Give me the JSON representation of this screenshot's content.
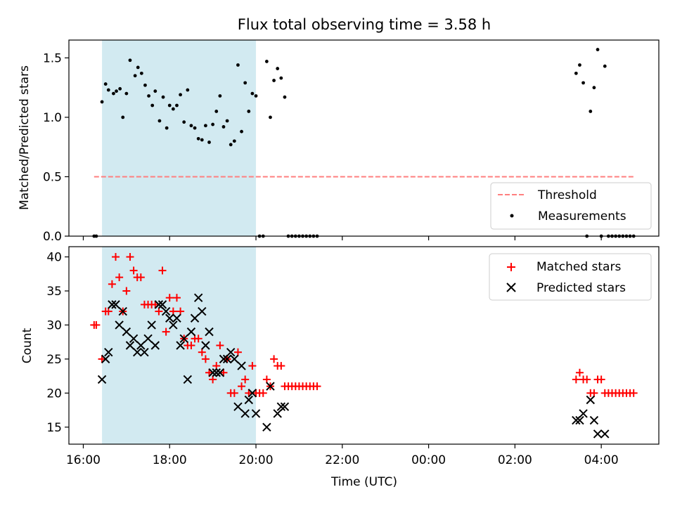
{
  "chart_data": [
    {
      "type": "scatter",
      "title": "Flux total observing time = 3.58 h",
      "xlabel": "",
      "ylabel": "Matched/Predicted stars",
      "ylim": [
        0,
        1.65
      ],
      "xlim": [
        "15:40",
        "05:20"
      ],
      "yticks": [
        "0.0",
        "0.5",
        "1.0",
        "1.5"
      ],
      "ytick_values": [
        0,
        0.5,
        1.0,
        1.5
      ],
      "shaded_span": {
        "start": "16:26",
        "end": "20:00",
        "color": "#add8e6"
      },
      "grid": false,
      "legend_position": "lower-right",
      "legend": {
        "threshold_label": "Threshold",
        "measurements_label": "Measurements"
      },
      "threshold": {
        "value": 0.5,
        "x_start": "16:15",
        "x_end": "04:45",
        "color": "#ff7f7f"
      },
      "measurements_color": "#000000",
      "measurements": [
        {
          "t": "16:15",
          "v": 0
        },
        {
          "t": "16:18",
          "v": 0
        },
        {
          "t": "16:26",
          "v": 1.13
        },
        {
          "t": "16:31",
          "v": 1.28
        },
        {
          "t": "16:35",
          "v": 1.23
        },
        {
          "t": "16:42",
          "v": 1.2
        },
        {
          "t": "16:46",
          "v": 1.22
        },
        {
          "t": "16:51",
          "v": 1.24
        },
        {
          "t": "16:55",
          "v": 1.0
        },
        {
          "t": "17:00",
          "v": 1.2
        },
        {
          "t": "17:05",
          "v": 1.48
        },
        {
          "t": "17:12",
          "v": 1.35
        },
        {
          "t": "17:16",
          "v": 1.42
        },
        {
          "t": "17:21",
          "v": 1.37
        },
        {
          "t": "17:26",
          "v": 1.27
        },
        {
          "t": "17:31",
          "v": 1.18
        },
        {
          "t": "17:36",
          "v": 1.1
        },
        {
          "t": "17:40",
          "v": 1.22
        },
        {
          "t": "17:46",
          "v": 0.97
        },
        {
          "t": "17:51",
          "v": 1.17
        },
        {
          "t": "17:56",
          "v": 0.91
        },
        {
          "t": "18:00",
          "v": 1.1
        },
        {
          "t": "18:05",
          "v": 1.07
        },
        {
          "t": "18:10",
          "v": 1.1
        },
        {
          "t": "18:15",
          "v": 1.19
        },
        {
          "t": "18:20",
          "v": 0.96
        },
        {
          "t": "18:25",
          "v": 1.23
        },
        {
          "t": "18:30",
          "v": 0.93
        },
        {
          "t": "18:35",
          "v": 0.91
        },
        {
          "t": "18:40",
          "v": 0.82
        },
        {
          "t": "18:45",
          "v": 0.81
        },
        {
          "t": "18:50",
          "v": 0.93
        },
        {
          "t": "18:55",
          "v": 0.79
        },
        {
          "t": "19:00",
          "v": 0.94
        },
        {
          "t": "19:05",
          "v": 1.05
        },
        {
          "t": "19:10",
          "v": 1.18
        },
        {
          "t": "19:15",
          "v": 0.92
        },
        {
          "t": "19:20",
          "v": 0.97
        },
        {
          "t": "19:25",
          "v": 0.77
        },
        {
          "t": "19:30",
          "v": 0.8
        },
        {
          "t": "19:35",
          "v": 1.44
        },
        {
          "t": "19:40",
          "v": 0.88
        },
        {
          "t": "19:45",
          "v": 1.29
        },
        {
          "t": "19:50",
          "v": 1.05
        },
        {
          "t": "19:55",
          "v": 1.2
        },
        {
          "t": "20:00",
          "v": 1.18
        },
        {
          "t": "20:05",
          "v": 0
        },
        {
          "t": "20:10",
          "v": 0
        },
        {
          "t": "20:15",
          "v": 1.47
        },
        {
          "t": "20:20",
          "v": 1.0
        },
        {
          "t": "20:25",
          "v": 1.31
        },
        {
          "t": "20:30",
          "v": 1.41
        },
        {
          "t": "20:35",
          "v": 1.33
        },
        {
          "t": "20:40",
          "v": 1.17
        },
        {
          "t": "20:45",
          "v": 0
        },
        {
          "t": "20:50",
          "v": 0
        },
        {
          "t": "20:55",
          "v": 0
        },
        {
          "t": "21:00",
          "v": 0
        },
        {
          "t": "21:05",
          "v": 0
        },
        {
          "t": "21:10",
          "v": 0
        },
        {
          "t": "21:15",
          "v": 0
        },
        {
          "t": "21:20",
          "v": 0
        },
        {
          "t": "21:25",
          "v": 0
        },
        {
          "t": "03:25",
          "v": 1.37
        },
        {
          "t": "03:30",
          "v": 1.44
        },
        {
          "t": "03:35",
          "v": 1.29
        },
        {
          "t": "03:40",
          "v": 0
        },
        {
          "t": "03:45",
          "v": 1.05
        },
        {
          "t": "03:50",
          "v": 1.25
        },
        {
          "t": "03:55",
          "v": 1.57
        },
        {
          "t": "04:00",
          "v": 0
        },
        {
          "t": "04:05",
          "v": 1.43
        },
        {
          "t": "04:10",
          "v": 0
        },
        {
          "t": "04:15",
          "v": 0
        },
        {
          "t": "04:20",
          "v": 0
        },
        {
          "t": "04:25",
          "v": 0
        },
        {
          "t": "04:30",
          "v": 0
        },
        {
          "t": "04:35",
          "v": 0
        },
        {
          "t": "04:40",
          "v": 0
        },
        {
          "t": "04:45",
          "v": 0
        }
      ]
    },
    {
      "type": "scatter",
      "title": "",
      "xlabel": "Time (UTC)",
      "ylabel": "Count",
      "ylim": [
        12.5,
        41.5
      ],
      "xlim": [
        "15:40",
        "05:20"
      ],
      "yticks": [
        "15",
        "20",
        "25",
        "30",
        "35",
        "40"
      ],
      "ytick_values": [
        15,
        20,
        25,
        30,
        35,
        40
      ],
      "xticks": [
        "16:00",
        "18:00",
        "20:00",
        "22:00",
        "00:00",
        "02:00",
        "04:00"
      ],
      "shaded_span": {
        "start": "16:26",
        "end": "20:00",
        "color": "#add8e6"
      },
      "grid": false,
      "legend_position": "top-right",
      "series": [
        {
          "name": "Matched stars",
          "marker": "plus",
          "color": "#ff0000",
          "points": [
            {
              "t": "16:15",
              "v": 30
            },
            {
              "t": "16:18",
              "v": 30
            },
            {
              "t": "16:26",
              "v": 25
            },
            {
              "t": "16:31",
              "v": 32
            },
            {
              "t": "16:35",
              "v": 32
            },
            {
              "t": "16:40",
              "v": 36
            },
            {
              "t": "16:45",
              "v": 40
            },
            {
              "t": "16:50",
              "v": 37
            },
            {
              "t": "16:55",
              "v": 32
            },
            {
              "t": "17:00",
              "v": 35
            },
            {
              "t": "17:05",
              "v": 40
            },
            {
              "t": "17:10",
              "v": 38
            },
            {
              "t": "17:15",
              "v": 37
            },
            {
              "t": "17:20",
              "v": 37
            },
            {
              "t": "17:25",
              "v": 33
            },
            {
              "t": "17:30",
              "v": 33
            },
            {
              "t": "17:35",
              "v": 33
            },
            {
              "t": "17:40",
              "v": 33
            },
            {
              "t": "17:45",
              "v": 32
            },
            {
              "t": "17:50",
              "v": 38
            },
            {
              "t": "17:55",
              "v": 29
            },
            {
              "t": "18:00",
              "v": 34
            },
            {
              "t": "18:05",
              "v": 32
            },
            {
              "t": "18:10",
              "v": 34
            },
            {
              "t": "18:15",
              "v": 32
            },
            {
              "t": "18:20",
              "v": 28
            },
            {
              "t": "18:25",
              "v": 27
            },
            {
              "t": "18:30",
              "v": 27
            },
            {
              "t": "18:35",
              "v": 28
            },
            {
              "t": "18:40",
              "v": 28
            },
            {
              "t": "18:45",
              "v": 26
            },
            {
              "t": "18:50",
              "v": 25
            },
            {
              "t": "18:55",
              "v": 23
            },
            {
              "t": "19:00",
              "v": 22
            },
            {
              "t": "19:05",
              "v": 24
            },
            {
              "t": "19:10",
              "v": 27
            },
            {
              "t": "19:15",
              "v": 23
            },
            {
              "t": "19:20",
              "v": 25
            },
            {
              "t": "19:25",
              "v": 20
            },
            {
              "t": "19:30",
              "v": 20
            },
            {
              "t": "19:35",
              "v": 26
            },
            {
              "t": "19:40",
              "v": 21
            },
            {
              "t": "19:45",
              "v": 22
            },
            {
              "t": "19:50",
              "v": 20
            },
            {
              "t": "19:55",
              "v": 24
            },
            {
              "t": "20:00",
              "v": 20
            },
            {
              "t": "20:05",
              "v": 20
            },
            {
              "t": "20:10",
              "v": 20
            },
            {
              "t": "20:15",
              "v": 22
            },
            {
              "t": "20:20",
              "v": 21
            },
            {
              "t": "20:25",
              "v": 25
            },
            {
              "t": "20:30",
              "v": 24
            },
            {
              "t": "20:35",
              "v": 24
            },
            {
              "t": "20:40",
              "v": 21
            },
            {
              "t": "20:45",
              "v": 21
            },
            {
              "t": "20:50",
              "v": 21
            },
            {
              "t": "20:55",
              "v": 21
            },
            {
              "t": "21:00",
              "v": 21
            },
            {
              "t": "21:05",
              "v": 21
            },
            {
              "t": "21:10",
              "v": 21
            },
            {
              "t": "21:15",
              "v": 21
            },
            {
              "t": "21:20",
              "v": 21
            },
            {
              "t": "21:25",
              "v": 21
            },
            {
              "t": "03:25",
              "v": 22
            },
            {
              "t": "03:30",
              "v": 23
            },
            {
              "t": "03:35",
              "v": 22
            },
            {
              "t": "03:40",
              "v": 22
            },
            {
              "t": "03:45",
              "v": 20
            },
            {
              "t": "03:50",
              "v": 20
            },
            {
              "t": "03:55",
              "v": 22
            },
            {
              "t": "04:00",
              "v": 22
            },
            {
              "t": "04:05",
              "v": 20
            },
            {
              "t": "04:10",
              "v": 20
            },
            {
              "t": "04:15",
              "v": 20
            },
            {
              "t": "04:20",
              "v": 20
            },
            {
              "t": "04:25",
              "v": 20
            },
            {
              "t": "04:30",
              "v": 20
            },
            {
              "t": "04:35",
              "v": 20
            },
            {
              "t": "04:40",
              "v": 20
            },
            {
              "t": "04:45",
              "v": 20
            }
          ]
        },
        {
          "name": "Predicted stars",
          "marker": "x",
          "color": "#000000",
          "points": [
            {
              "t": "16:26",
              "v": 22
            },
            {
              "t": "16:31",
              "v": 25
            },
            {
              "t": "16:35",
              "v": 26
            },
            {
              "t": "16:40",
              "v": 33
            },
            {
              "t": "16:45",
              "v": 33
            },
            {
              "t": "16:50",
              "v": 30
            },
            {
              "t": "16:55",
              "v": 32
            },
            {
              "t": "17:00",
              "v": 29
            },
            {
              "t": "17:05",
              "v": 27
            },
            {
              "t": "17:10",
              "v": 28
            },
            {
              "t": "17:15",
              "v": 26
            },
            {
              "t": "17:20",
              "v": 27
            },
            {
              "t": "17:25",
              "v": 26
            },
            {
              "t": "17:30",
              "v": 28
            },
            {
              "t": "17:35",
              "v": 30
            },
            {
              "t": "17:40",
              "v": 27
            },
            {
              "t": "17:45",
              "v": 33
            },
            {
              "t": "17:50",
              "v": 33
            },
            {
              "t": "17:55",
              "v": 32
            },
            {
              "t": "18:00",
              "v": 31
            },
            {
              "t": "18:05",
              "v": 30
            },
            {
              "t": "18:10",
              "v": 31
            },
            {
              "t": "18:15",
              "v": 27
            },
            {
              "t": "18:20",
              "v": 28
            },
            {
              "t": "18:25",
              "v": 22
            },
            {
              "t": "18:30",
              "v": 29
            },
            {
              "t": "18:35",
              "v": 31
            },
            {
              "t": "18:40",
              "v": 34
            },
            {
              "t": "18:45",
              "v": 32
            },
            {
              "t": "18:50",
              "v": 27
            },
            {
              "t": "18:55",
              "v": 29
            },
            {
              "t": "19:00",
              "v": 23
            },
            {
              "t": "19:05",
              "v": 23
            },
            {
              "t": "19:10",
              "v": 23
            },
            {
              "t": "19:15",
              "v": 25
            },
            {
              "t": "19:20",
              "v": 25
            },
            {
              "t": "19:25",
              "v": 26
            },
            {
              "t": "19:30",
              "v": 25
            },
            {
              "t": "19:35",
              "v": 18
            },
            {
              "t": "19:40",
              "v": 24
            },
            {
              "t": "19:45",
              "v": 17
            },
            {
              "t": "19:50",
              "v": 19
            },
            {
              "t": "19:55",
              "v": 20
            },
            {
              "t": "20:00",
              "v": 17
            },
            {
              "t": "20:15",
              "v": 15
            },
            {
              "t": "20:20",
              "v": 21
            },
            {
              "t": "20:30",
              "v": 17
            },
            {
              "t": "20:35",
              "v": 18
            },
            {
              "t": "20:40",
              "v": 18
            },
            {
              "t": "03:25",
              "v": 16
            },
            {
              "t": "03:30",
              "v": 16
            },
            {
              "t": "03:35",
              "v": 17
            },
            {
              "t": "03:45",
              "v": 19
            },
            {
              "t": "03:50",
              "v": 16
            },
            {
              "t": "03:55",
              "v": 14
            },
            {
              "t": "04:05",
              "v": 14
            }
          ]
        }
      ]
    }
  ]
}
